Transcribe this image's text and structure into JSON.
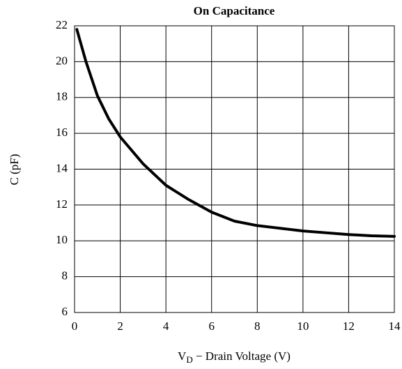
{
  "chart_data": {
    "type": "line",
    "title": "On Capacitance",
    "x_label": {
      "main": "V",
      "subscript": "D",
      "rest": " − Drain Voltage (V)"
    },
    "y_label": "C (pF)",
    "series": [
      {
        "name": "C",
        "color": "#000000",
        "x": [
          0.1,
          0.5,
          1,
          1.5,
          2,
          3,
          4,
          5,
          6,
          7,
          8,
          9,
          10,
          11,
          12,
          13,
          14
        ],
        "values": [
          21.8,
          20.0,
          18.1,
          16.8,
          15.8,
          14.3,
          13.1,
          12.3,
          11.6,
          11.1,
          10.85,
          10.7,
          10.55,
          10.45,
          10.35,
          10.28,
          10.25
        ]
      }
    ],
    "xlim": [
      0,
      14
    ],
    "xticks": [
      0,
      2,
      4,
      6,
      8,
      10,
      12,
      14
    ],
    "ylim": [
      6,
      22
    ],
    "yticks": [
      6,
      8,
      10,
      12,
      14,
      16,
      18,
      20,
      22
    ],
    "grid": true
  }
}
